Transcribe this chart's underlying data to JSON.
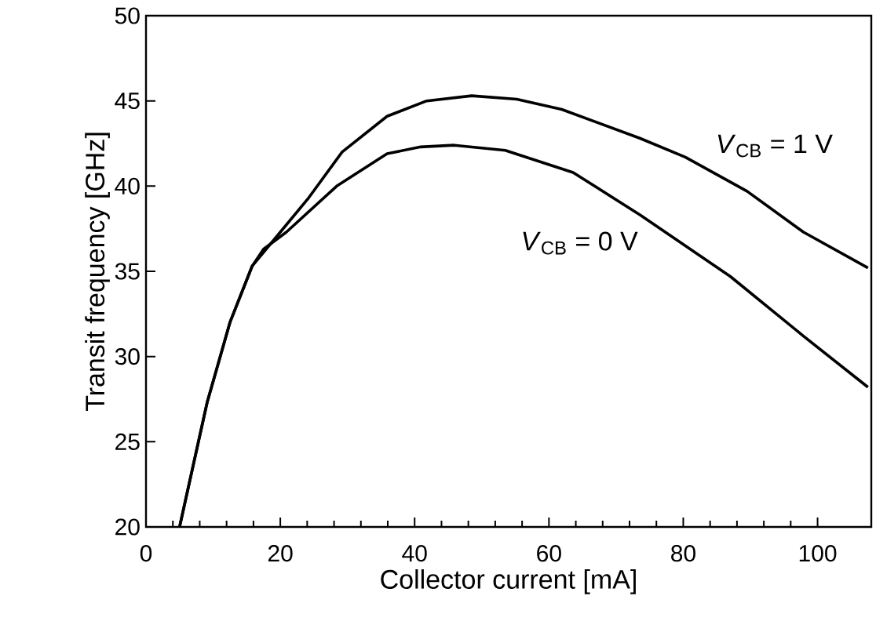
{
  "chart_data": {
    "type": "line",
    "xlabel": "Collector current  [mA]",
    "ylabel": "Transit frequency  [GHz]",
    "xlim": [
      0,
      108
    ],
    "ylim": [
      20,
      50
    ],
    "xticks": [
      0,
      20,
      40,
      60,
      80,
      100
    ],
    "yticks": [
      20,
      25,
      30,
      35,
      40,
      45,
      50
    ],
    "grid": false,
    "legend": false,
    "marker": "none",
    "line_style": "solid",
    "series": [
      {
        "name": "*V*$_{CB}$ = 1 V",
        "color": "#000000",
        "x": [
          5.0,
          9.1,
          12.5,
          15.8,
          20.0,
          24.2,
          29.2,
          35.9,
          41.8,
          48.5,
          55.2,
          61.9,
          73.6,
          80.3,
          89.5,
          97.9,
          107.5
        ],
        "values": [
          20.0,
          27.3,
          32.0,
          35.3,
          37.3,
          39.3,
          42.0,
          44.1,
          45.0,
          45.3,
          45.1,
          44.5,
          42.8,
          41.7,
          39.7,
          37.3,
          35.2
        ]
      },
      {
        "name": "*V*$_{CB}$ = 0 V",
        "color": "#000000",
        "x": [
          5.0,
          9.1,
          12.5,
          15.8,
          17.5,
          20.9,
          28.4,
          35.9,
          40.9,
          45.9,
          53.5,
          63.6,
          73.6,
          87.0,
          97.9,
          107.5
        ],
        "values": [
          20.0,
          27.3,
          32.0,
          35.3,
          36.3,
          37.3,
          40.0,
          41.9,
          42.3,
          42.4,
          42.1,
          40.8,
          38.3,
          34.7,
          31.2,
          28.2
        ]
      }
    ]
  }
}
